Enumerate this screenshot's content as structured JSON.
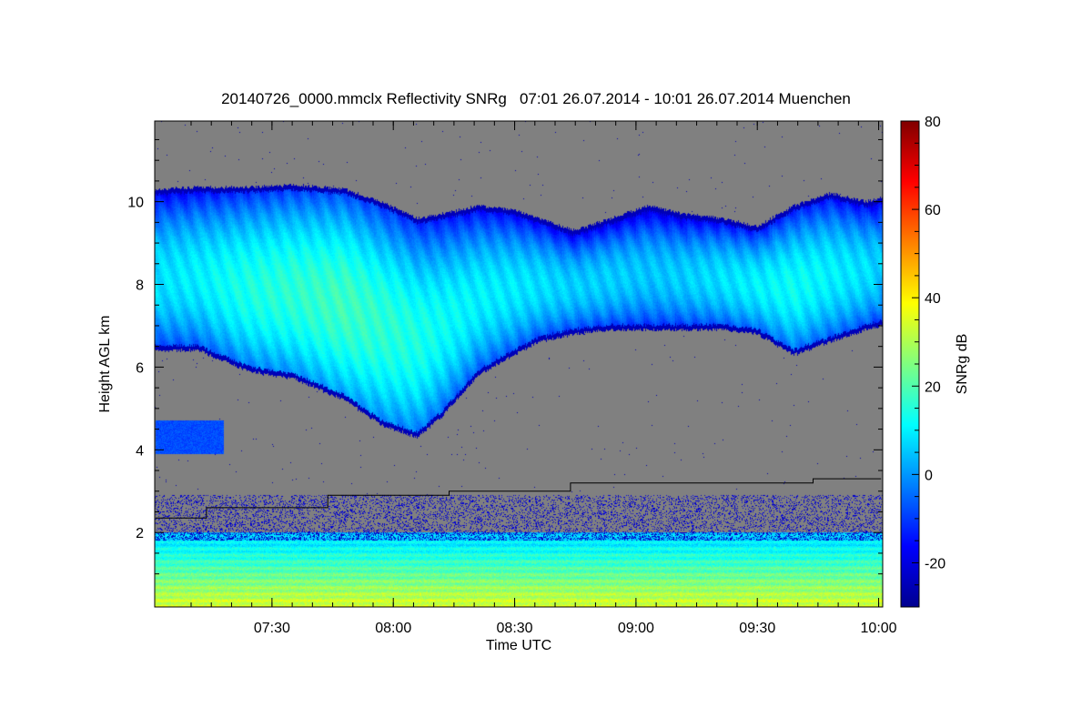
{
  "chart_data": {
    "type": "heatmap",
    "title": "20140726_0000.mmclx Reflectivity SNRg   07:01 26.07.2014 - 10:01 26.07.2014 Muenchen",
    "xlabel": "Time UTC",
    "ylabel": "Height AGL km",
    "colorbar_label": "SNRg dB",
    "x_range_hours": [
      7.0167,
      10.0167
    ],
    "y_range_km": [
      0.2,
      11.95
    ],
    "color_range_db": [
      -30,
      80
    ],
    "x_ticks": [
      {
        "value": 7.5,
        "label": "07:30"
      },
      {
        "value": 8.0,
        "label": "08:00"
      },
      {
        "value": 8.5,
        "label": "08:30"
      },
      {
        "value": 9.0,
        "label": "09:00"
      },
      {
        "value": 9.5,
        "label": "09:30"
      },
      {
        "value": 10.0,
        "label": "10:00"
      }
    ],
    "y_ticks": [
      {
        "value": 2,
        "label": "2"
      },
      {
        "value": 4,
        "label": "4"
      },
      {
        "value": 6,
        "label": "6"
      },
      {
        "value": 8,
        "label": "8"
      },
      {
        "value": 10,
        "label": "10"
      }
    ],
    "colorbar_ticks": [
      {
        "value": -20,
        "label": "-20"
      },
      {
        "value": 0,
        "label": "0"
      },
      {
        "value": 20,
        "label": "20"
      },
      {
        "value": 40,
        "label": "40"
      },
      {
        "value": 60,
        "label": "60"
      },
      {
        "value": 80,
        "label": "80"
      }
    ],
    "background_color": "#808080",
    "colormap": "jet",
    "cloud_layer": {
      "times": [
        7.02,
        7.2,
        7.4,
        7.6,
        7.8,
        7.95,
        8.1,
        8.2,
        8.35,
        8.5,
        8.6,
        8.75,
        8.9,
        9.05,
        9.2,
        9.35,
        9.5,
        9.65,
        9.8,
        9.95,
        10.01
      ],
      "top_km": [
        10.3,
        10.35,
        10.35,
        10.4,
        10.3,
        10.0,
        9.6,
        9.7,
        9.9,
        9.8,
        9.6,
        9.3,
        9.6,
        9.9,
        9.7,
        9.6,
        9.4,
        9.9,
        10.2,
        10.0,
        10.1
      ],
      "base_km": [
        6.4,
        6.4,
        5.9,
        5.7,
        5.2,
        4.6,
        4.3,
        4.8,
        5.8,
        6.3,
        6.6,
        6.8,
        6.9,
        6.9,
        6.9,
        6.9,
        6.8,
        6.3,
        6.6,
        6.9,
        7.0
      ],
      "core_db": [
        8,
        10,
        14,
        16,
        18,
        16,
        14,
        12,
        10,
        9,
        8,
        6,
        6,
        5,
        6,
        8,
        10,
        12,
        10,
        8,
        6
      ]
    },
    "low_cloud_patch": {
      "time_range": [
        7.02,
        7.3
      ],
      "height_range_km": [
        3.9,
        4.7
      ],
      "db": -8
    },
    "boundary_layer": {
      "height_km": [
        0.2,
        2.0
      ],
      "db_range": [
        5,
        35
      ],
      "noise_top_km": 2.9
    },
    "overlay_line": {
      "color": "#000000",
      "times": [
        7.02,
        7.23,
        7.23,
        7.73,
        7.73,
        8.23,
        8.23,
        8.73,
        8.73,
        9.73,
        9.73,
        10.01
      ],
      "height_km": [
        2.35,
        2.35,
        2.6,
        2.6,
        2.9,
        2.9,
        3.0,
        3.0,
        3.2,
        3.2,
        3.3,
        3.3
      ]
    }
  }
}
